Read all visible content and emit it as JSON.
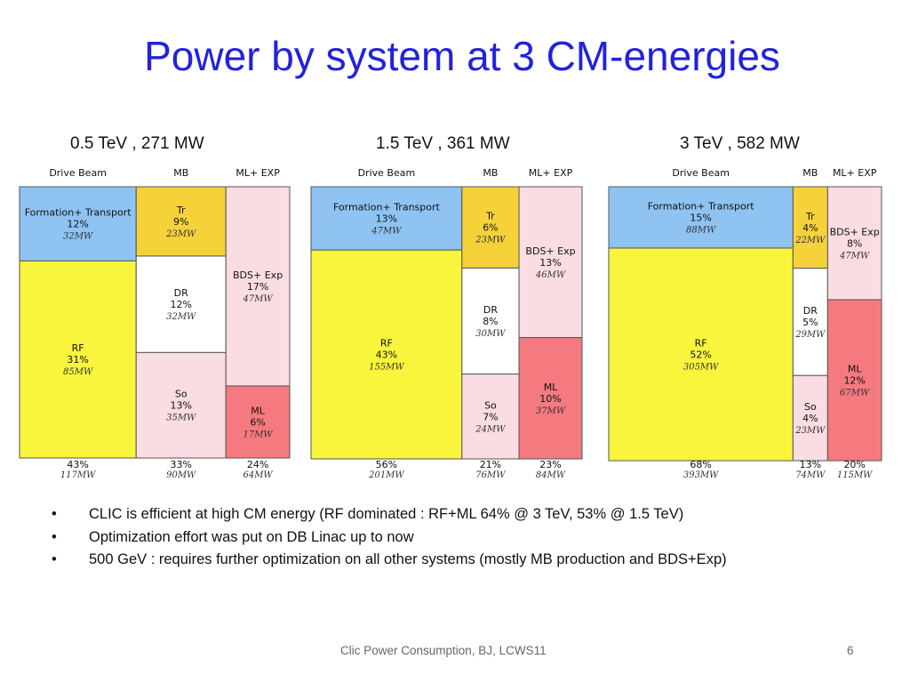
{
  "slide": {
    "title": "Power by system at 3 CM-energies",
    "footer": "Clic Power Consumption, BJ,  LCWS11",
    "page_number": "6",
    "bullets": [
      "CLIC is efficient at high CM energy (RF dominated : RF+ML 64% @ 3 TeV, 53% @ 1.5 TeV)",
      "Optimization effort was put on DB Linac up to now",
      "500 GeV : requires further optimization on all other systems (mostly MB production and BDS+Exp)"
    ]
  },
  "chart_data": [
    {
      "type": "mosaic",
      "title": "0.5 TeV , 271 MW",
      "columns": [
        {
          "label": "Drive Beam",
          "pct": "43%",
          "mw": "117MW",
          "value": 117,
          "segments": [
            {
              "name": "Formation+ Transport",
              "pct": "12%",
              "mw": "32MW",
              "value": 32,
              "color": "#8ec3f2"
            },
            {
              "name": "RF",
              "pct": "31%",
              "mw": "85MW",
              "value": 85,
              "color": "#f8f53c"
            }
          ]
        },
        {
          "label": "MB",
          "pct": "33%",
          "mw": "90MW",
          "value": 90,
          "segments": [
            {
              "name": "Tr",
              "pct": "9%",
              "mw": "23MW",
              "value": 23,
              "color": "#f6d23a"
            },
            {
              "name": "DR",
              "pct": "12%",
              "mw": "32MW",
              "value": 32,
              "color": "#ffffff"
            },
            {
              "name": "So",
              "pct": "13%",
              "mw": "35MW",
              "value": 35,
              "color": "#fadde2"
            }
          ]
        },
        {
          "label": "ML+ EXP",
          "pct": "24%",
          "mw": "64MW",
          "value": 64,
          "segments": [
            {
              "name": "BDS+ Exp",
              "pct": "17%",
              "mw": "47MW",
              "value": 47,
              "color": "#fadde2"
            },
            {
              "name": "ML",
              "pct": "6%",
              "mw": "17MW",
              "value": 17,
              "color": "#f47a80"
            }
          ]
        }
      ]
    },
    {
      "type": "mosaic",
      "title": "1.5 TeV , 361 MW",
      "columns": [
        {
          "label": "Drive Beam",
          "pct": "56%",
          "mw": "201MW",
          "value": 201,
          "segments": [
            {
              "name": "Formation+ Transport",
              "pct": "13%",
              "mw": "47MW",
              "value": 47,
              "color": "#8ec3f2"
            },
            {
              "name": "RF",
              "pct": "43%",
              "mw": "155MW",
              "value": 155,
              "color": "#f8f53c"
            }
          ]
        },
        {
          "label": "MB",
          "pct": "21%",
          "mw": "76MW",
          "value": 76,
          "segments": [
            {
              "name": "Tr",
              "pct": "6%",
              "mw": "23MW",
              "value": 23,
              "color": "#f6d23a"
            },
            {
              "name": "DR",
              "pct": "8%",
              "mw": "30MW",
              "value": 30,
              "color": "#ffffff"
            },
            {
              "name": "So",
              "pct": "7%",
              "mw": "24MW",
              "value": 24,
              "color": "#fadde2"
            }
          ]
        },
        {
          "label": "ML+ EXP",
          "pct": "23%",
          "mw": "84MW",
          "value": 84,
          "segments": [
            {
              "name": "BDS+ Exp",
              "pct": "13%",
              "mw": "46MW",
              "value": 46,
              "color": "#fadde2"
            },
            {
              "name": "ML",
              "pct": "10%",
              "mw": "37MW",
              "value": 37,
              "color": "#f47a80"
            }
          ]
        }
      ]
    },
    {
      "type": "mosaic",
      "title": "3 TeV , 582 MW",
      "columns": [
        {
          "label": "Drive Beam",
          "pct": "68%",
          "mw": "393MW",
          "value": 393,
          "segments": [
            {
              "name": "Formation+ Transport",
              "pct": "15%",
              "mw": "88MW",
              "value": 88,
              "color": "#8ec3f2"
            },
            {
              "name": "RF",
              "pct": "52%",
              "mw": "305MW",
              "value": 305,
              "color": "#f8f53c"
            }
          ]
        },
        {
          "label": "MB",
          "pct": "13%",
          "mw": "74MW",
          "value": 74,
          "segments": [
            {
              "name": "Tr",
              "pct": "4%",
              "mw": "22MW",
              "value": 22,
              "color": "#f6d23a"
            },
            {
              "name": "DR",
              "pct": "5%",
              "mw": "29MW",
              "value": 29,
              "color": "#ffffff"
            },
            {
              "name": "So",
              "pct": "4%",
              "mw": "23MW",
              "value": 23,
              "color": "#fadde2"
            }
          ]
        },
        {
          "label": "ML+ EXP",
          "pct": "20%",
          "mw": "115MW",
          "value": 115,
          "segments": [
            {
              "name": "BDS+ Exp",
              "pct": "8%",
              "mw": "47MW",
              "value": 47,
              "color": "#fadde2"
            },
            {
              "name": "ML",
              "pct": "12%",
              "mw": "67MW",
              "value": 67,
              "color": "#f47a80"
            }
          ]
        }
      ]
    }
  ]
}
